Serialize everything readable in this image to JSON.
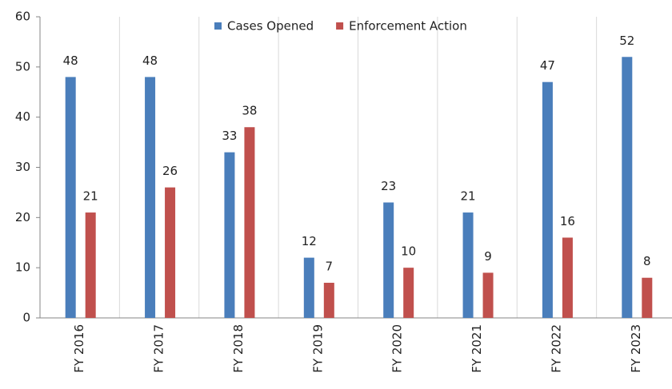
{
  "chart_data": {
    "type": "bar",
    "categories": [
      "FY 2016",
      "FY 2017",
      "FY 2018",
      "FY 2019",
      "FY 2020",
      "FY 2021",
      "FY 2022",
      "FY 2023"
    ],
    "series": [
      {
        "name": "Cases Opened",
        "color": "#4a7ebb",
        "values": [
          48,
          48,
          33,
          12,
          23,
          21,
          47,
          52
        ]
      },
      {
        "name": "Enforcement Action",
        "color": "#c0504d",
        "values": [
          21,
          26,
          38,
          7,
          10,
          9,
          16,
          8
        ]
      }
    ],
    "ylim": [
      0,
      60
    ],
    "yticks": [
      0,
      10,
      20,
      30,
      40,
      50,
      60
    ],
    "legend": "top"
  }
}
